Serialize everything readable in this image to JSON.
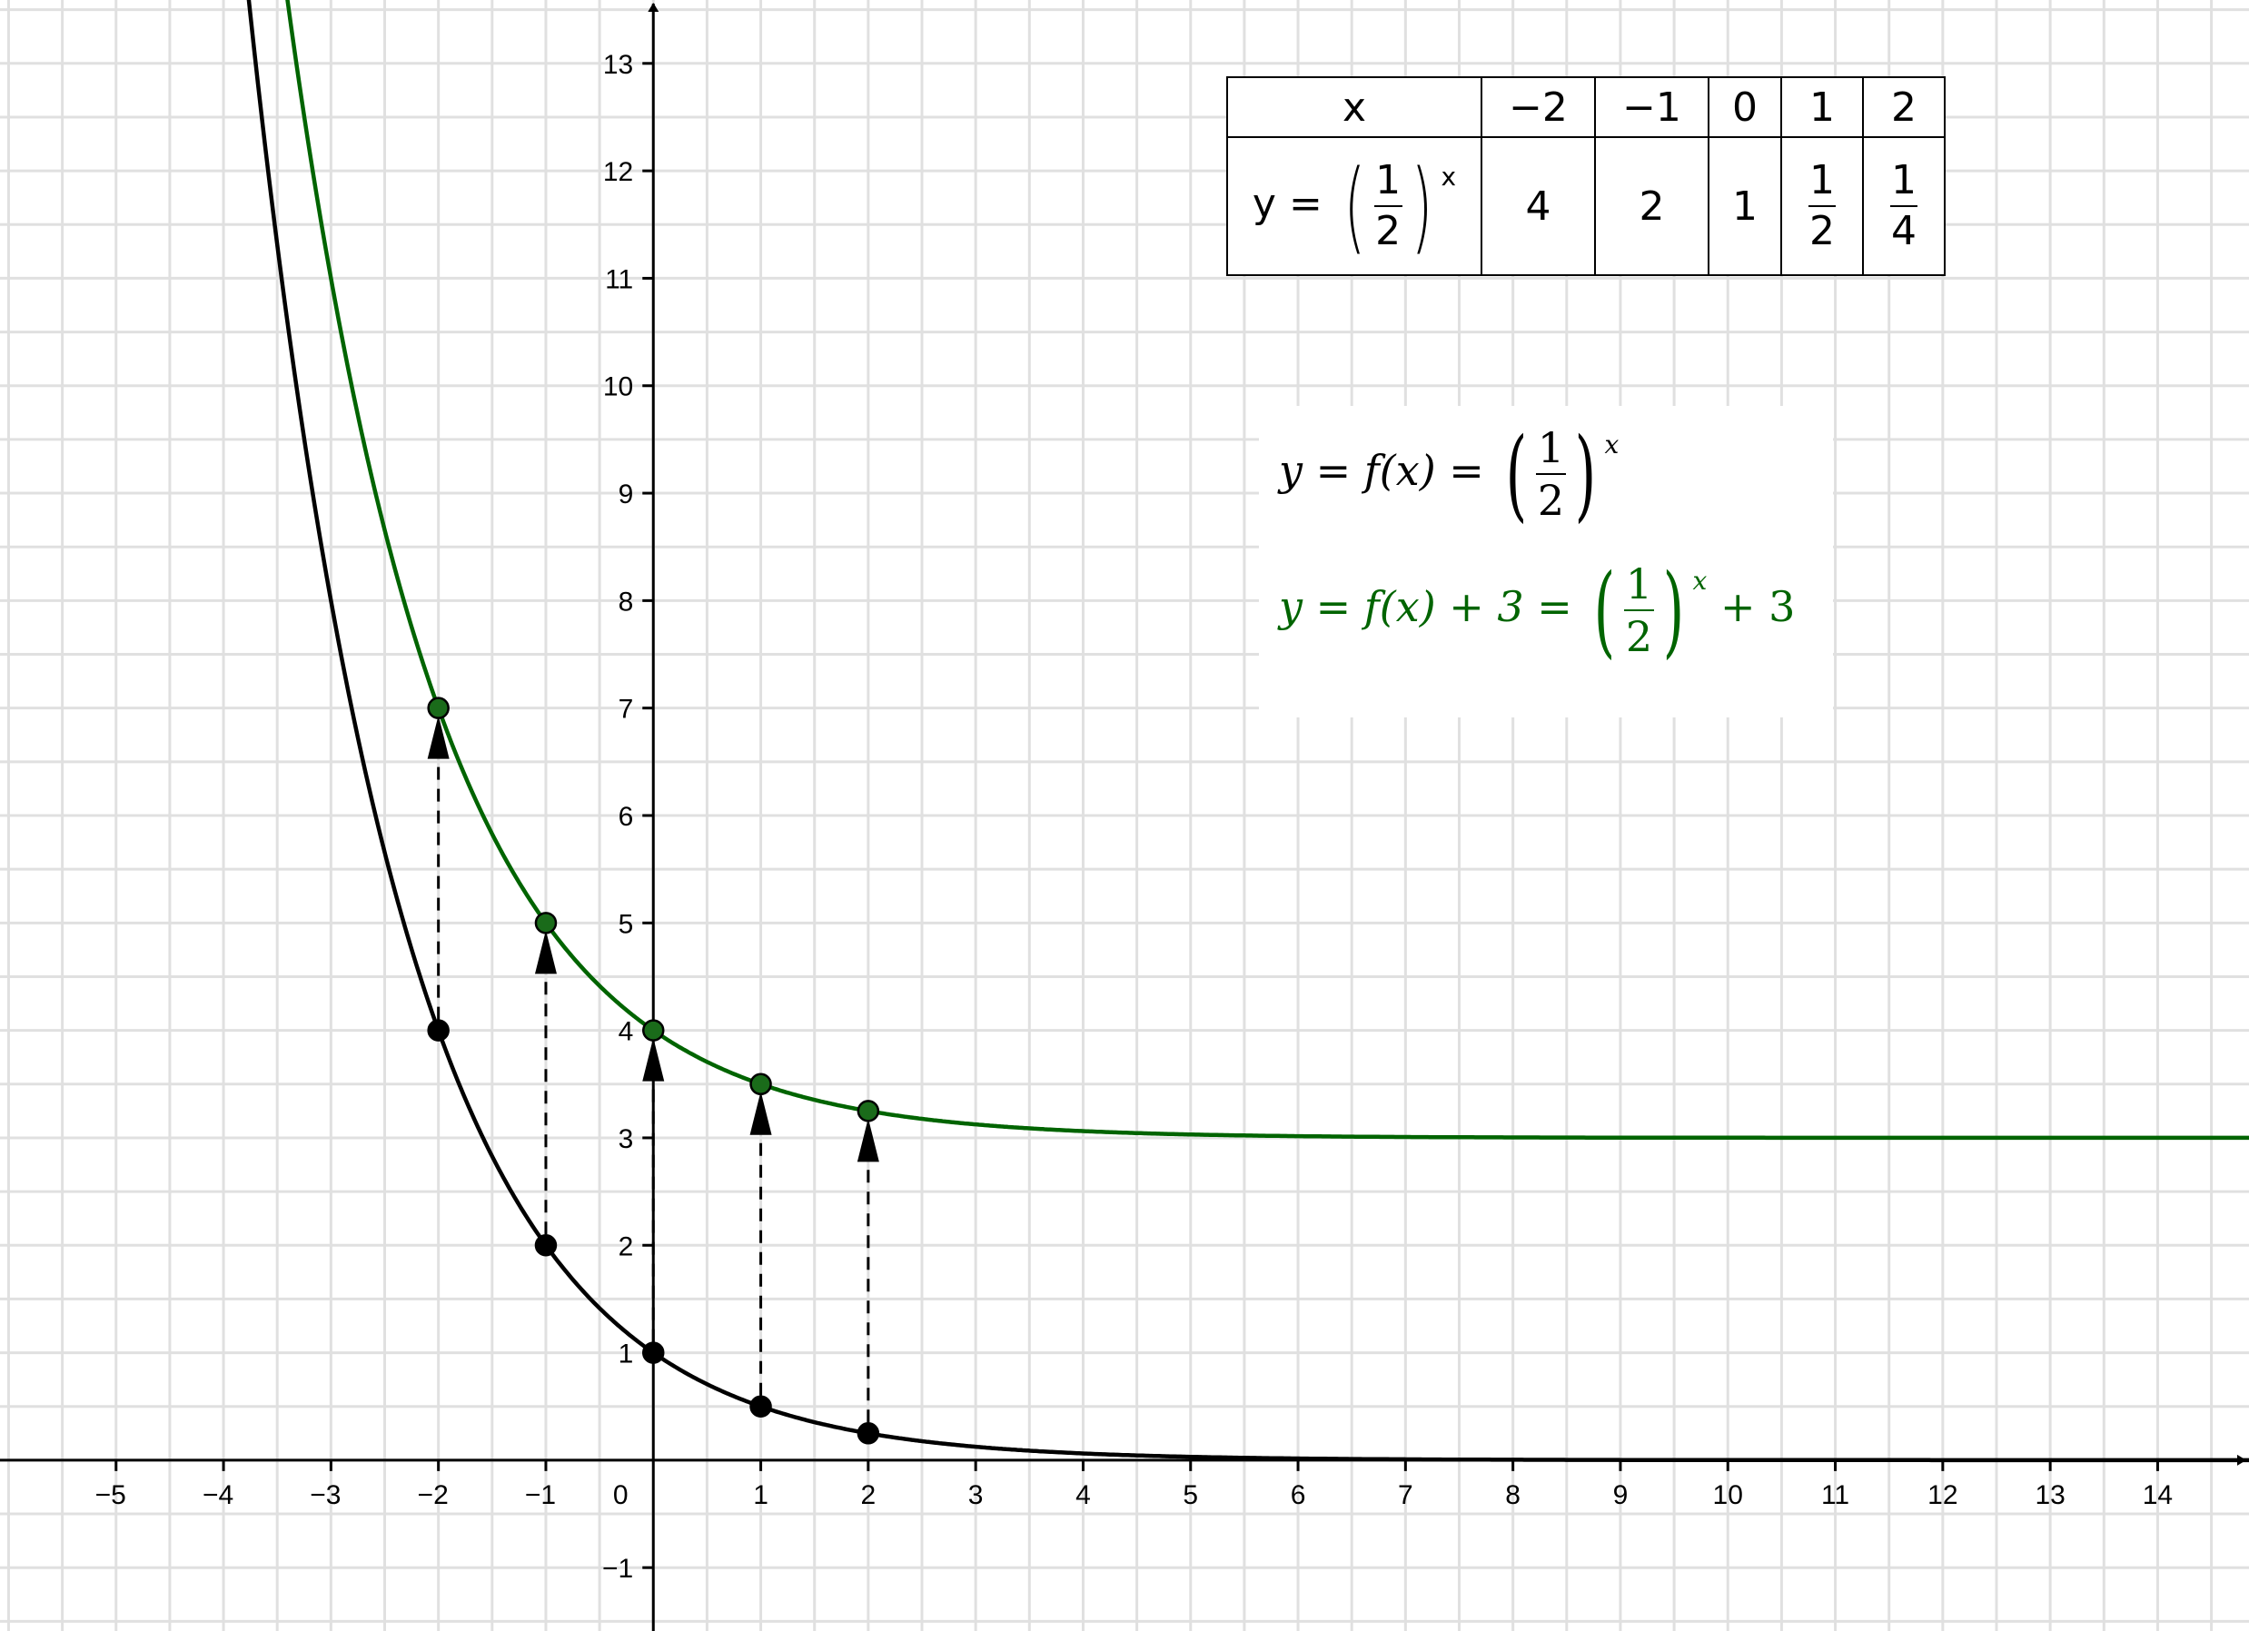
{
  "chart_data": {
    "type": "line",
    "xlim": [
      -6.08,
      14.85
    ],
    "ylim": [
      -1.59,
      13.59
    ],
    "grid": true,
    "grid_step": 0.5,
    "x_tick_labels": [
      "-5",
      "-4",
      "-3",
      "-2",
      "-1",
      "0",
      "1",
      "2",
      "3",
      "4",
      "5",
      "6",
      "7",
      "8",
      "9",
      "10",
      "11",
      "12",
      "13",
      "14"
    ],
    "y_tick_labels": [
      "-1",
      "1",
      "2",
      "3",
      "4",
      "5",
      "6",
      "7",
      "8",
      "9",
      "10",
      "11",
      "12",
      "13"
    ],
    "series": [
      {
        "expression": "(1/2)^x",
        "color": "#000000",
        "points": [
          {
            "x": -2,
            "y": 4
          },
          {
            "x": -1,
            "y": 2
          },
          {
            "x": 0,
            "y": 1
          },
          {
            "x": 1,
            "y": 0.5
          },
          {
            "x": 2,
            "y": 0.25
          }
        ]
      },
      {
        "expression": "(1/2)^x + 3",
        "color": "#006400",
        "points": [
          {
            "x": -2,
            "y": 7
          },
          {
            "x": -1,
            "y": 5
          },
          {
            "x": 0,
            "y": 4
          },
          {
            "x": 1,
            "y": 3.5
          },
          {
            "x": 2,
            "y": 3.25
          }
        ]
      }
    ],
    "shift_arrows": {
      "dy": 3,
      "style": "dashed",
      "x": [
        -2,
        -1,
        0,
        1,
        2
      ]
    }
  },
  "table": {
    "header_label": "x",
    "row_label": {
      "y": "y",
      "eq": "=",
      "num": "1",
      "den": "2",
      "exp": "x"
    },
    "x_values": [
      "−2",
      "−1",
      "0",
      "1",
      "2"
    ],
    "y_values": [
      {
        "text": "4"
      },
      {
        "text": "2"
      },
      {
        "text": "1"
      },
      {
        "num": "1",
        "den": "2"
      },
      {
        "num": "1",
        "den": "4"
      }
    ]
  },
  "formulas": {
    "f1": {
      "lhs": "y = f(x) =",
      "num": "1",
      "den": "2",
      "exp": "x",
      "tail": ""
    },
    "f2": {
      "lhs": "y = f(x) + 3 =",
      "num": "1",
      "den": "2",
      "exp": "x",
      "tail": "+ 3"
    },
    "green": "#006400"
  }
}
